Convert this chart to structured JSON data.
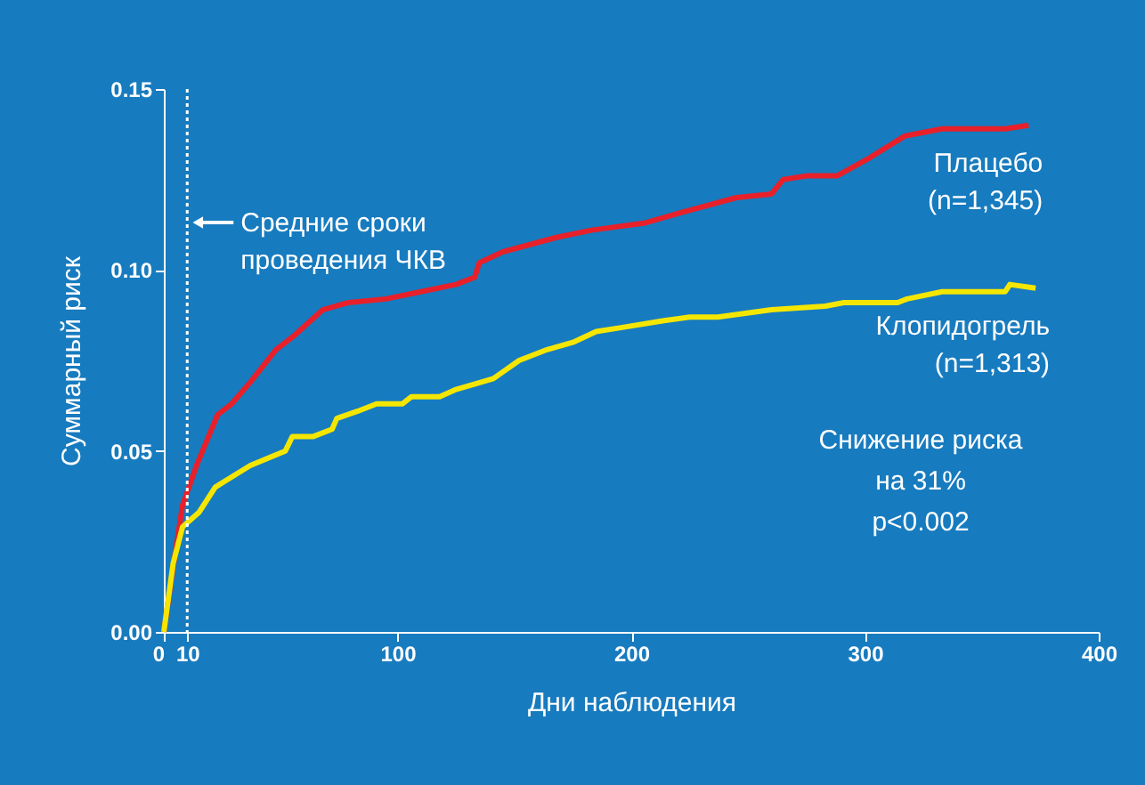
{
  "chart_data": {
    "type": "line",
    "xlabel": "Дни наблюдения",
    "ylabel": "Суммарный риск",
    "xlim": [
      0,
      400
    ],
    "xticks": [
      0,
      10,
      100,
      200,
      300,
      400
    ],
    "ylim": [
      0,
      0.15
    ],
    "yticks": [
      {
        "value": 0,
        "label": "0.00"
      },
      {
        "value": 0.05,
        "label": "0.05"
      },
      {
        "value": 0.1,
        "label": "0.10"
      },
      {
        "value": 0.15,
        "label": "0.15"
      }
    ],
    "grid": false,
    "marker": "none",
    "line_style": "solid",
    "series": [
      {
        "name": "Плацебо\n(n=1,345)",
        "color": "#e8202a",
        "x": [
          0,
          4,
          8,
          14,
          23,
          29,
          37,
          48,
          56,
          68,
          79,
          95,
          110,
          125,
          133,
          135,
          145,
          168,
          183,
          206,
          222,
          245,
          260,
          265,
          275,
          288,
          302,
          317,
          333,
          360,
          370
        ],
        "values": [
          0,
          0.018,
          0.035,
          0.046,
          0.06,
          0.063,
          0.069,
          0.078,
          0.082,
          0.089,
          0.091,
          0.092,
          0.094,
          0.096,
          0.098,
          0.102,
          0.105,
          0.109,
          0.111,
          0.113,
          0.116,
          0.12,
          0.121,
          0.125,
          0.126,
          0.126,
          0.131,
          0.137,
          0.139,
          0.139,
          0.14
        ]
      },
      {
        "name": "Клопидогрель\n(n=1,313)",
        "color": "#f5e600",
        "x": [
          0,
          4,
          8,
          15,
          22,
          37,
          52,
          55,
          64,
          72,
          74,
          83,
          91,
          102,
          106,
          118,
          125,
          141,
          152,
          164,
          175,
          185,
          195,
          214,
          225,
          237,
          260,
          283,
          291,
          314,
          318,
          333,
          360,
          362,
          373
        ],
        "values": [
          0,
          0.019,
          0.029,
          0.033,
          0.04,
          0.046,
          0.05,
          0.054,
          0.054,
          0.056,
          0.059,
          0.061,
          0.063,
          0.063,
          0.065,
          0.065,
          0.067,
          0.07,
          0.075,
          0.078,
          0.08,
          0.083,
          0.084,
          0.086,
          0.087,
          0.087,
          0.089,
          0.09,
          0.091,
          0.091,
          0.092,
          0.094,
          0.094,
          0.096,
          0.095
        ]
      }
    ],
    "ref_lines": [
      {
        "axis": "x",
        "value": 10,
        "label": "Средние сроки\nпроведения ЧКВ",
        "color": "#ffffff",
        "line_style": "dotted"
      }
    ],
    "annotations": [
      "Снижение риска\nна 31%\np<0.002"
    ]
  }
}
